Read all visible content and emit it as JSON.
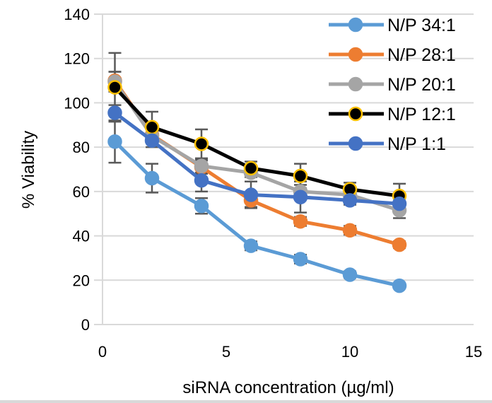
{
  "chart_data": {
    "type": "line",
    "title": "",
    "xlabel": "siRNA concentration (µg/ml)",
    "ylabel": "% Viability",
    "xlim": [
      0,
      15
    ],
    "ylim": [
      0,
      140
    ],
    "xticks": [
      0,
      5,
      10,
      15
    ],
    "yticks": [
      0,
      20,
      40,
      60,
      80,
      100,
      120,
      140
    ],
    "grid": "horizontal",
    "legend_position": "top-right",
    "x": [
      0.5,
      2,
      4,
      6,
      8,
      10,
      12
    ],
    "series": [
      {
        "name": "N/P 34:1",
        "color": "#5b9bd5",
        "marker_edge": "#5b9bd5",
        "values": [
          82.5,
          66,
          53.5,
          35.5,
          29.5,
          22.5,
          17.5
        ],
        "errors": [
          9.5,
          6.5,
          3.5,
          2,
          2,
          1.5,
          1
        ]
      },
      {
        "name": "N/P 28:1",
        "color": "#ed7d31",
        "marker_edge": "#ed7d31",
        "values": [
          110,
          85.5,
          71,
          56,
          46.5,
          42.5,
          36
        ],
        "errors": [
          4,
          3,
          3,
          3,
          2,
          2,
          1.5
        ]
      },
      {
        "name": "N/P 20:1",
        "color": "#a5a5a5",
        "marker_edge": "#a5a5a5",
        "values": [
          109.5,
          85,
          71.5,
          68.5,
          60,
          58.5,
          51.5
        ],
        "errors": [
          4.5,
          3,
          3,
          2,
          3,
          2,
          3.5
        ]
      },
      {
        "name": "N/P 12:1",
        "color": "#000000",
        "marker_edge": "#ffc000",
        "values": [
          107,
          89,
          81.5,
          70.5,
          67,
          61,
          58
        ],
        "errors": [
          15.5,
          7,
          6.5,
          3,
          5.5,
          3,
          5.5
        ]
      },
      {
        "name": "N/P 1:1",
        "color": "#4472c4",
        "marker_edge": "#4472c4",
        "values": [
          95.5,
          83,
          65,
          58.5,
          57.5,
          56,
          54.5
        ],
        "errors": [
          3.5,
          3,
          5,
          6,
          7,
          2,
          3
        ]
      }
    ]
  }
}
